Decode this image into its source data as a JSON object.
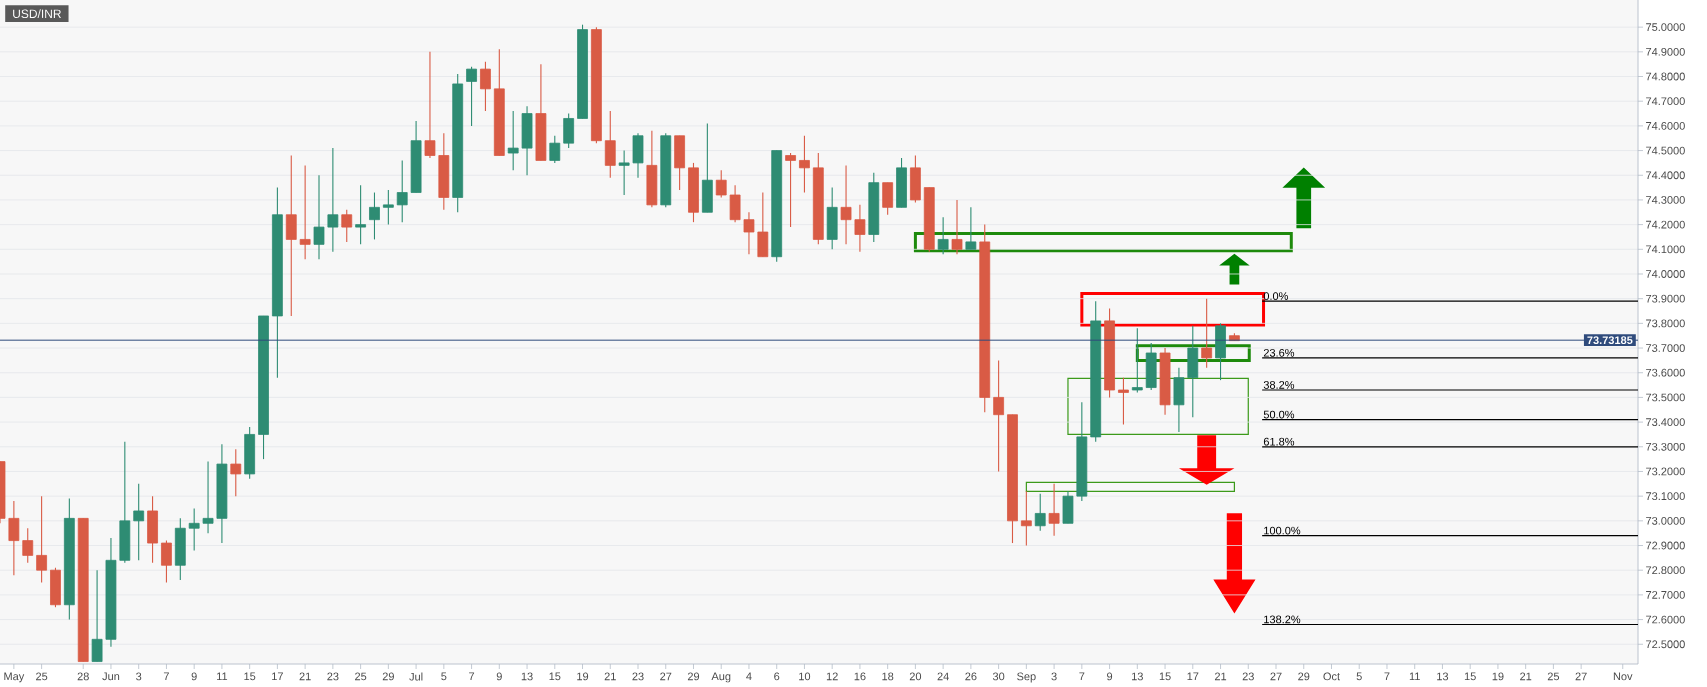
{
  "chart_data": {
    "type": "candlestick",
    "title": "USD/INR",
    "categories": [
      null,
      "May",
      null,
      "25",
      null,
      null,
      "28",
      null,
      "Jun",
      null,
      "3",
      null,
      "7",
      null,
      "9",
      null,
      "11",
      null,
      "15",
      null,
      "17",
      null,
      "21",
      null,
      "23",
      null,
      "25",
      null,
      "29",
      null,
      "Jul",
      null,
      "5",
      null,
      "7",
      null,
      "9",
      null,
      "13",
      null,
      "15",
      null,
      "19",
      null,
      "21",
      null,
      "23",
      null,
      "27",
      null,
      "29",
      null,
      "Aug",
      null,
      "4",
      null,
      "6",
      null,
      "10",
      null,
      "12",
      null,
      "16",
      null,
      "18",
      null,
      "20",
      null,
      "24",
      null,
      "26",
      null,
      "30",
      null,
      "Sep",
      null,
      "3",
      null,
      "7",
      null,
      "9",
      null,
      "13",
      null,
      "15",
      null,
      "17",
      null,
      "21",
      null,
      "23",
      null,
      "27",
      null,
      "29",
      null,
      "Oct",
      null,
      "5",
      null,
      "7",
      null,
      "11",
      null,
      "13",
      null,
      "15",
      null,
      "19",
      null,
      "21",
      null,
      "25",
      null,
      "27",
      null,
      null,
      "Nov",
      null
    ],
    "ohlc": [
      [
        73.24,
        73.24,
        72.99,
        73.01
      ],
      [
        73.01,
        73.08,
        72.78,
        72.92
      ],
      [
        72.92,
        72.97,
        72.83,
        72.86
      ],
      [
        72.86,
        73.1,
        72.75,
        72.8
      ],
      [
        72.8,
        72.81,
        72.65,
        72.66
      ],
      [
        72.66,
        73.09,
        72.6,
        73.01
      ],
      [
        73.01,
        73.01,
        72.43,
        72.43
      ],
      [
        72.43,
        72.8,
        72.43,
        72.52
      ],
      [
        72.52,
        72.93,
        72.49,
        72.84
      ],
      [
        72.84,
        73.32,
        72.83,
        73.0
      ],
      [
        73.0,
        73.15,
        72.84,
        73.04
      ],
      [
        73.04,
        73.1,
        72.83,
        72.91
      ],
      [
        72.91,
        72.92,
        72.75,
        72.82
      ],
      [
        72.82,
        73.01,
        72.76,
        72.97
      ],
      [
        72.97,
        73.05,
        72.88,
        72.99
      ],
      [
        72.99,
        73.24,
        72.95,
        73.01
      ],
      [
        73.01,
        73.31,
        72.91,
        73.23
      ],
      [
        73.23,
        73.29,
        73.1,
        73.19
      ],
      [
        73.19,
        73.38,
        73.17,
        73.35
      ],
      [
        73.35,
        73.83,
        73.25,
        73.83
      ],
      [
        73.83,
        74.35,
        73.58,
        74.24
      ],
      [
        74.24,
        74.48,
        73.83,
        74.14
      ],
      [
        74.14,
        74.44,
        74.06,
        74.12
      ],
      [
        74.12,
        74.4,
        74.06,
        74.19
      ],
      [
        74.19,
        74.51,
        74.09,
        74.24
      ],
      [
        74.24,
        74.26,
        74.13,
        74.19
      ],
      [
        74.19,
        74.36,
        74.12,
        74.2
      ],
      [
        74.22,
        74.33,
        74.14,
        74.27
      ],
      [
        74.27,
        74.34,
        74.2,
        74.28
      ],
      [
        74.28,
        74.46,
        74.21,
        74.33
      ],
      [
        74.33,
        74.62,
        74.33,
        74.54
      ],
      [
        74.54,
        74.9,
        74.47,
        74.48
      ],
      [
        74.48,
        74.57,
        74.26,
        74.31
      ],
      [
        74.31,
        74.81,
        74.25,
        74.77
      ],
      [
        74.78,
        74.84,
        74.6,
        74.83
      ],
      [
        74.83,
        74.86,
        74.66,
        74.75
      ],
      [
        74.75,
        74.91,
        74.48,
        74.48
      ],
      [
        74.49,
        74.66,
        74.42,
        74.51
      ],
      [
        74.51,
        74.68,
        74.4,
        74.65
      ],
      [
        74.65,
        74.85,
        74.46,
        74.46
      ],
      [
        74.46,
        74.56,
        74.45,
        74.53
      ],
      [
        74.53,
        74.65,
        74.51,
        74.63
      ],
      [
        74.63,
        75.01,
        74.63,
        74.99
      ],
      [
        74.99,
        75.0,
        74.53,
        74.54
      ],
      [
        74.54,
        74.66,
        74.39,
        74.44
      ],
      [
        74.44,
        74.5,
        74.32,
        74.45
      ],
      [
        74.45,
        74.57,
        74.39,
        74.56
      ],
      [
        74.44,
        74.58,
        74.27,
        74.28
      ],
      [
        74.28,
        74.57,
        74.27,
        74.56
      ],
      [
        74.56,
        74.56,
        74.34,
        74.43
      ],
      [
        74.43,
        74.45,
        74.21,
        74.25
      ],
      [
        74.25,
        74.61,
        74.25,
        74.38
      ],
      [
        74.38,
        74.42,
        74.31,
        74.32
      ],
      [
        74.32,
        74.36,
        74.21,
        74.22
      ],
      [
        74.22,
        74.25,
        74.08,
        74.17
      ],
      [
        74.17,
        74.33,
        74.07,
        74.07
      ],
      [
        74.07,
        74.5,
        74.05,
        74.5
      ],
      [
        74.48,
        74.49,
        74.19,
        74.46
      ],
      [
        74.46,
        74.56,
        74.33,
        74.43
      ],
      [
        74.43,
        74.49,
        74.12,
        74.14
      ],
      [
        74.14,
        74.35,
        74.1,
        74.27
      ],
      [
        74.27,
        74.44,
        74.12,
        74.22
      ],
      [
        74.22,
        74.28,
        74.09,
        74.16
      ],
      [
        74.16,
        74.41,
        74.13,
        74.37
      ],
      [
        74.37,
        74.37,
        74.24,
        74.27
      ],
      [
        74.27,
        74.47,
        74.27,
        74.43
      ],
      [
        74.43,
        74.48,
        74.29,
        74.3
      ],
      [
        74.35,
        74.35,
        74.09,
        74.1
      ],
      [
        74.1,
        74.23,
        74.08,
        74.14
      ],
      [
        74.14,
        74.3,
        74.08,
        74.1
      ],
      [
        74.1,
        74.27,
        74.1,
        74.13
      ],
      [
        74.13,
        74.2,
        73.44,
        73.5
      ],
      [
        73.5,
        73.65,
        73.2,
        73.43
      ],
      [
        73.43,
        73.43,
        72.91,
        73.0
      ],
      [
        73.0,
        73.12,
        72.9,
        72.98
      ],
      [
        72.98,
        73.11,
        72.96,
        73.03
      ],
      [
        73.03,
        73.15,
        72.94,
        72.99
      ],
      [
        72.99,
        73.12,
        72.99,
        73.1
      ],
      [
        73.1,
        73.48,
        73.08,
        73.34
      ],
      [
        73.34,
        73.89,
        73.32,
        73.81
      ],
      [
        73.81,
        73.86,
        73.5,
        73.53
      ],
      [
        73.53,
        73.58,
        73.39,
        73.52
      ],
      [
        73.53,
        73.78,
        73.52,
        73.54
      ],
      [
        73.54,
        73.72,
        73.53,
        73.68
      ],
      [
        73.68,
        73.7,
        73.43,
        73.47
      ],
      [
        73.47,
        73.62,
        73.36,
        73.58
      ],
      [
        73.58,
        73.79,
        73.42,
        73.7
      ],
      [
        73.7,
        73.9,
        73.62,
        73.66
      ],
      [
        73.66,
        73.8,
        73.57,
        73.79
      ],
      [
        73.75,
        73.76,
        73.73,
        73.73
      ],
      null,
      null,
      null,
      null,
      null,
      null,
      null,
      null,
      null,
      null,
      null,
      null,
      null,
      null,
      null,
      null,
      null,
      null,
      null,
      null,
      null,
      null,
      null,
      null,
      null,
      null,
      null,
      null,
      null
    ],
    "colors": [
      "#d95b45",
      "#d95b45",
      "#d95b45",
      "#d95b45",
      "#d95b45",
      "#2e8c73",
      "#d95b45",
      "#2e8c73",
      "#2e8c73",
      "#2e8c73",
      "#2e8c73",
      "#d95b45",
      "#d95b45",
      "#2e8c73",
      "#2e8c73",
      "#2e8c73",
      "#2e8c73",
      "#d95b45",
      "#2e8c73",
      "#2e8c73",
      "#2e8c73",
      "#d95b45",
      "#d95b45",
      "#2e8c73",
      "#2e8c73",
      "#d95b45",
      "#2e8c73",
      "#2e8c73",
      "#2e8c73",
      "#2e8c73",
      "#2e8c73",
      "#d95b45",
      "#d95b45",
      "#2e8c73",
      "#2e8c73",
      "#d95b45",
      "#d95b45",
      "#2e8c73",
      "#2e8c73",
      "#d95b45",
      "#2e8c73",
      "#2e8c73",
      "#2e8c73",
      "#d95b45",
      "#d95b45",
      "#2e8c73",
      "#2e8c73",
      "#d95b45",
      "#2e8c73",
      "#d95b45",
      "#d95b45",
      "#2e8c73",
      "#d95b45",
      "#d95b45",
      "#d95b45",
      "#d95b45",
      "#2e8c73",
      "#d95b45",
      "#d95b45",
      "#d95b45",
      "#2e8c73",
      "#d95b45",
      "#d95b45",
      "#2e8c73",
      "#d95b45",
      "#2e8c73",
      "#d95b45",
      "#d95b45",
      "#2e8c73",
      "#d95b45",
      "#2e8c73",
      "#d95b45",
      "#d95b45",
      "#d95b45",
      "#d95b45",
      "#2e8c73",
      "#d95b45",
      "#2e8c73",
      "#2e8c73",
      "#2e8c73",
      "#d95b45",
      "#d95b45",
      "#2e8c73",
      "#2e8c73",
      "#d95b45",
      "#2e8c73",
      "#2e8c73",
      "#d95b45",
      "#2e8c73",
      "#d95b45",
      null,
      null,
      null,
      null,
      null,
      null,
      null,
      null,
      null,
      null,
      null,
      null,
      null,
      null,
      null,
      null,
      null,
      null,
      null,
      null,
      null,
      null,
      null,
      null,
      null,
      null,
      null,
      null,
      null
    ],
    "ylim": [
      72.42,
      75.11
    ],
    "yticks": [
      {
        "value": 72.5,
        "label": "72.5000"
      },
      {
        "value": 72.6,
        "label": "72.6000"
      },
      {
        "value": 72.7,
        "label": "72.7000"
      },
      {
        "value": 72.8,
        "label": "72.8000"
      },
      {
        "value": 72.9,
        "label": "72.9000"
      },
      {
        "value": 73.0,
        "label": "73.0000"
      },
      {
        "value": 73.1,
        "label": "73.1000"
      },
      {
        "value": 73.2,
        "label": "73.2000"
      },
      {
        "value": 73.3,
        "label": "73.3000"
      },
      {
        "value": 73.4,
        "label": "73.4000"
      },
      {
        "value": 73.5,
        "label": "73.5000"
      },
      {
        "value": 73.6,
        "label": "73.6000"
      },
      {
        "value": 73.7,
        "label": "73.7000"
      },
      {
        "value": 73.8,
        "label": "73.8000"
      },
      {
        "value": 73.9,
        "label": "73.9000"
      },
      {
        "value": 74.0,
        "label": "74.0000"
      },
      {
        "value": 74.1,
        "label": "74.1000"
      },
      {
        "value": 74.2,
        "label": "74.2000"
      },
      {
        "value": 74.3,
        "label": "74.3000"
      },
      {
        "value": 74.4,
        "label": "74.4000"
      },
      {
        "value": 74.5,
        "label": "74.5000"
      },
      {
        "value": 74.6,
        "label": "74.6000"
      },
      {
        "value": 74.7,
        "label": "74.7000"
      },
      {
        "value": 74.8,
        "label": "74.8000"
      },
      {
        "value": 74.9,
        "label": "74.9000"
      },
      {
        "value": 75.0,
        "label": "75.0000"
      }
    ],
    "grid": "y",
    "ref_lines": [
      {
        "axis": "y",
        "value": 73.73185,
        "label": "73.73185",
        "color": "#2f4b7c"
      },
      {
        "axis": "y",
        "value": 73.89
      },
      {
        "axis": "y",
        "value": 73.66
      },
      {
        "axis": "y",
        "value": 73.53
      },
      {
        "axis": "y",
        "value": 73.41
      },
      {
        "axis": "y",
        "value": 73.3
      },
      {
        "axis": "y",
        "value": 72.94
      },
      {
        "axis": "y",
        "value": 72.58
      }
    ],
    "annotations": [
      {
        "text": "0.0%",
        "y": 73.89
      },
      {
        "text": "23.6%",
        "y": 73.66
      },
      {
        "text": "38.2%",
        "y": 73.53
      },
      {
        "text": "50.0%",
        "y": 73.41
      },
      {
        "text": "61.8%",
        "y": 73.3
      },
      {
        "text": "100.0%",
        "y": 72.94
      },
      {
        "text": "138.2%",
        "y": 72.58
      }
    ]
  }
}
